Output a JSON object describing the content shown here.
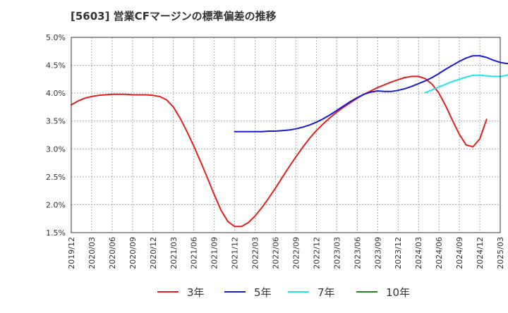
{
  "chart_data": {
    "type": "line",
    "title": "[5603]  営業CFマージンの標準偏差の推移",
    "xlabel": "",
    "ylabel": "",
    "ylim": [
      1.5,
      5.0
    ],
    "yticks": [
      "1.5%",
      "2.0%",
      "2.5%",
      "3.0%",
      "3.5%",
      "4.0%",
      "4.5%",
      "5.0%"
    ],
    "ytick_values": [
      1.5,
      2.0,
      2.5,
      3.0,
      3.5,
      4.0,
      4.5,
      5.0
    ],
    "xticks": [
      "2019/12",
      "2020/03",
      "2020/06",
      "2020/09",
      "2020/12",
      "2021/03",
      "2021/06",
      "2021/09",
      "2021/12",
      "2022/03",
      "2022/06",
      "2022/09",
      "2022/12",
      "2023/03",
      "2023/06",
      "2023/09",
      "2023/12",
      "2024/03",
      "2024/06",
      "2024/09",
      "2024/12",
      "2025/03"
    ],
    "grid": true,
    "legend_position": "bottom",
    "series": [
      {
        "name": "3年",
        "color": "#e02020",
        "points": [
          [
            0,
            3.79
          ],
          [
            1,
            3.86
          ],
          [
            2,
            3.91
          ],
          [
            3,
            3.94
          ],
          [
            4,
            3.96
          ],
          [
            5,
            3.97
          ],
          [
            6,
            3.98
          ],
          [
            7,
            3.98
          ],
          [
            8,
            3.98
          ],
          [
            9,
            3.97
          ],
          [
            10,
            3.97
          ],
          [
            11,
            3.97
          ],
          [
            12,
            3.96
          ],
          [
            13,
            3.94
          ],
          [
            14,
            3.88
          ],
          [
            15,
            3.75
          ],
          [
            16,
            3.55
          ],
          [
            17,
            3.31
          ],
          [
            18,
            3.05
          ],
          [
            19,
            2.77
          ],
          [
            20,
            2.48
          ],
          [
            21,
            2.18
          ],
          [
            22,
            1.9
          ],
          [
            23,
            1.7
          ],
          [
            24,
            1.61
          ],
          [
            25,
            1.61
          ],
          [
            26,
            1.68
          ],
          [
            27,
            1.8
          ],
          [
            28,
            1.95
          ],
          [
            29,
            2.12
          ],
          [
            30,
            2.3
          ],
          [
            31,
            2.49
          ],
          [
            32,
            2.68
          ],
          [
            33,
            2.86
          ],
          [
            34,
            3.03
          ],
          [
            35,
            3.19
          ],
          [
            36,
            3.33
          ],
          [
            37,
            3.45
          ],
          [
            38,
            3.56
          ],
          [
            39,
            3.66
          ],
          [
            40,
            3.75
          ],
          [
            41,
            3.83
          ],
          [
            42,
            3.91
          ],
          [
            43,
            3.98
          ],
          [
            44,
            4.04
          ],
          [
            45,
            4.1
          ],
          [
            46,
            4.15
          ],
          [
            47,
            4.2
          ],
          [
            48,
            4.24
          ],
          [
            49,
            4.28
          ],
          [
            50,
            4.3
          ],
          [
            51,
            4.3
          ],
          [
            52,
            4.26
          ],
          [
            53,
            4.16
          ],
          [
            54,
            4.0
          ],
          [
            55,
            3.77
          ],
          [
            56,
            3.51
          ],
          [
            57,
            3.26
          ],
          [
            58,
            3.07
          ],
          [
            59,
            3.04
          ],
          [
            60,
            3.18
          ],
          [
            61,
            3.53
          ]
        ]
      },
      {
        "name": "5年",
        "color": "#1a1acc",
        "points": [
          [
            24,
            3.31
          ],
          [
            25,
            3.31
          ],
          [
            26,
            3.31
          ],
          [
            27,
            3.31
          ],
          [
            28,
            3.31
          ],
          [
            29,
            3.32
          ],
          [
            30,
            3.32
          ],
          [
            31,
            3.33
          ],
          [
            32,
            3.34
          ],
          [
            33,
            3.36
          ],
          [
            34,
            3.39
          ],
          [
            35,
            3.43
          ],
          [
            36,
            3.48
          ],
          [
            37,
            3.54
          ],
          [
            38,
            3.61
          ],
          [
            39,
            3.69
          ],
          [
            40,
            3.77
          ],
          [
            41,
            3.85
          ],
          [
            42,
            3.92
          ],
          [
            43,
            3.98
          ],
          [
            44,
            4.02
          ],
          [
            45,
            4.04
          ],
          [
            46,
            4.03
          ],
          [
            47,
            4.03
          ],
          [
            48,
            4.05
          ],
          [
            49,
            4.08
          ],
          [
            50,
            4.12
          ],
          [
            51,
            4.17
          ],
          [
            52,
            4.22
          ],
          [
            53,
            4.28
          ],
          [
            54,
            4.35
          ],
          [
            55,
            4.43
          ],
          [
            56,
            4.5
          ],
          [
            57,
            4.57
          ],
          [
            58,
            4.63
          ],
          [
            59,
            4.67
          ],
          [
            60,
            4.67
          ],
          [
            61,
            4.64
          ],
          [
            62,
            4.59
          ],
          [
            63,
            4.55
          ],
          [
            64,
            4.53
          ],
          [
            65,
            4.56
          ]
        ]
      },
      {
        "name": "7年",
        "color": "#22e5e5",
        "points": [
          [
            52,
            4.01
          ],
          [
            53,
            4.06
          ],
          [
            54,
            4.11
          ],
          [
            55,
            4.16
          ],
          [
            56,
            4.21
          ],
          [
            57,
            4.25
          ],
          [
            58,
            4.29
          ],
          [
            59,
            4.32
          ],
          [
            60,
            4.32
          ],
          [
            61,
            4.31
          ],
          [
            62,
            4.3
          ],
          [
            63,
            4.3
          ],
          [
            64,
            4.32
          ],
          [
            65,
            4.4
          ]
        ]
      },
      {
        "name": "10年",
        "color": "#208a20",
        "points": []
      }
    ]
  }
}
